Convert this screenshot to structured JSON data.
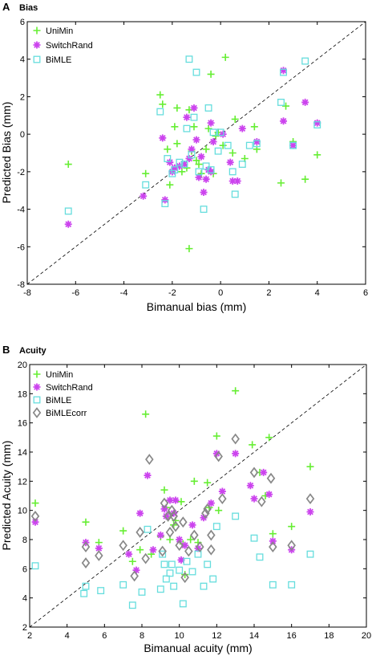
{
  "colors": {
    "UniMin": "#66ee33",
    "SwitchRand": "#cc44ee",
    "BiMLE": "#66dddd",
    "BiMLEcorr": "#888888",
    "axis": "#000000"
  },
  "chart_data": [
    {
      "type": "scatter",
      "panel_letter": "A",
      "title": "Bias",
      "xlabel": "Bimanual bias (mm)",
      "ylabel": "Predicted Bias (mm)",
      "xlim": [
        -8,
        6
      ],
      "ylim": [
        -8,
        6
      ],
      "xticks": [
        -8,
        -6,
        -4,
        -2,
        0,
        2,
        4,
        6
      ],
      "yticks": [
        -8,
        -6,
        -4,
        -2,
        0,
        2,
        4,
        6
      ],
      "identity_line": true,
      "legend_position": "top-left",
      "series": [
        {
          "name": "UniMin",
          "marker": "plus",
          "points": [
            [
              -6.3,
              -1.6
            ],
            [
              -3.1,
              -2.1
            ],
            [
              -2.5,
              2.1
            ],
            [
              -2.4,
              1.6
            ],
            [
              -2.2,
              -0.8
            ],
            [
              -2.1,
              -2.7
            ],
            [
              -1.9,
              0.4
            ],
            [
              -1.8,
              1.4
            ],
            [
              -1.8,
              -0.5
            ],
            [
              -1.6,
              -2.0
            ],
            [
              -1.4,
              -1.8
            ],
            [
              -1.3,
              1.3
            ],
            [
              -1.2,
              -0.9
            ],
            [
              -1.1,
              0.4
            ],
            [
              -1.0,
              -1.4
            ],
            [
              -0.9,
              -1.6
            ],
            [
              -0.8,
              -2.1
            ],
            [
              -0.6,
              -0.8
            ],
            [
              -0.5,
              0.3
            ],
            [
              -0.4,
              3.2
            ],
            [
              -0.3,
              -2.1
            ],
            [
              -0.2,
              -0.1
            ],
            [
              -0.1,
              0.1
            ],
            [
              0.1,
              -0.6
            ],
            [
              0.2,
              4.1
            ],
            [
              0.5,
              -1.0
            ],
            [
              0.6,
              0.8
            ],
            [
              1.0,
              -1.3
            ],
            [
              1.4,
              0.4
            ],
            [
              1.5,
              -0.8
            ],
            [
              -1.3,
              -6.1
            ],
            [
              2.5,
              -2.6
            ],
            [
              2.7,
              1.5
            ],
            [
              3.0,
              -0.4
            ],
            [
              3.5,
              -2.4
            ],
            [
              4.0,
              -1.1
            ]
          ]
        },
        {
          "name": "SwitchRand",
          "marker": "star",
          "points": [
            [
              -6.3,
              -4.8
            ],
            [
              -3.2,
              -3.3
            ],
            [
              -2.4,
              -0.2
            ],
            [
              -2.3,
              -3.5
            ],
            [
              -2.1,
              -1.5
            ],
            [
              -2.0,
              -2.0
            ],
            [
              -1.9,
              -1.8
            ],
            [
              -1.7,
              -1.7
            ],
            [
              -1.5,
              -1.6
            ],
            [
              -1.4,
              0.9
            ],
            [
              -1.3,
              -1.3
            ],
            [
              -1.2,
              -0.8
            ],
            [
              -1.1,
              1.4
            ],
            [
              -1.0,
              -0.3
            ],
            [
              -0.9,
              -2.3
            ],
            [
              -0.8,
              -1.2
            ],
            [
              -0.7,
              -3.1
            ],
            [
              -0.6,
              -2.4
            ],
            [
              -0.5,
              -1.9
            ],
            [
              -0.4,
              -2.0
            ],
            [
              -0.4,
              0.6
            ],
            [
              -0.3,
              -0.4
            ],
            [
              0.1,
              0.0
            ],
            [
              0.4,
              -1.5
            ],
            [
              0.5,
              -2.5
            ],
            [
              0.7,
              -2.5
            ],
            [
              0.9,
              0.3
            ],
            [
              1.5,
              -0.4
            ],
            [
              2.6,
              0.7
            ],
            [
              2.6,
              3.4
            ],
            [
              3.0,
              -0.6
            ],
            [
              3.5,
              1.7
            ],
            [
              4.0,
              0.6
            ]
          ]
        },
        {
          "name": "BiMLE",
          "marker": "square",
          "points": [
            [
              -6.3,
              -4.1
            ],
            [
              -3.1,
              -2.7
            ],
            [
              -2.5,
              1.2
            ],
            [
              -2.3,
              -3.7
            ],
            [
              -2.2,
              -1.3
            ],
            [
              -2.0,
              -2.1
            ],
            [
              -1.9,
              -1.9
            ],
            [
              -1.7,
              -1.5
            ],
            [
              -1.5,
              -1.6
            ],
            [
              -1.4,
              0.3
            ],
            [
              -1.3,
              4.0
            ],
            [
              -1.2,
              -1.1
            ],
            [
              -1.1,
              0.9
            ],
            [
              -1.0,
              3.3
            ],
            [
              -0.9,
              -2.0
            ],
            [
              -0.7,
              -4.0
            ],
            [
              -0.6,
              -1.7
            ],
            [
              -0.5,
              1.4
            ],
            [
              -0.4,
              -1.9
            ],
            [
              -0.3,
              0.1
            ],
            [
              -0.1,
              -0.9
            ],
            [
              0.0,
              0.1
            ],
            [
              0.3,
              -0.6
            ],
            [
              0.5,
              -2.0
            ],
            [
              0.6,
              -3.2
            ],
            [
              0.9,
              -1.6
            ],
            [
              1.2,
              -0.6
            ],
            [
              1.5,
              -0.5
            ],
            [
              2.5,
              1.7
            ],
            [
              2.6,
              3.3
            ],
            [
              3.0,
              -0.6
            ],
            [
              3.5,
              3.9
            ],
            [
              4.0,
              0.5
            ]
          ]
        }
      ]
    },
    {
      "type": "scatter",
      "panel_letter": "B",
      "title": "Acuity",
      "xlabel": "Bimanual acuity (mm)",
      "ylabel": "Predicted Acuity (mm)",
      "xlim": [
        2,
        20
      ],
      "ylim": [
        2,
        20
      ],
      "xticks": [
        2,
        4,
        6,
        8,
        10,
        12,
        14,
        16,
        18,
        20
      ],
      "yticks": [
        2,
        4,
        6,
        8,
        10,
        12,
        14,
        16,
        18,
        20
      ],
      "identity_line": true,
      "legend_position": "top-left",
      "series": [
        {
          "name": "UniMin",
          "marker": "plus",
          "points": [
            [
              2.3,
              10.5
            ],
            [
              5.0,
              9.2
            ],
            [
              5.7,
              7.8
            ],
            [
              7.0,
              8.6
            ],
            [
              7.5,
              6.5
            ],
            [
              7.9,
              7.3
            ],
            [
              8.2,
              16.6
            ],
            [
              8.5,
              7.0
            ],
            [
              9.0,
              8.2
            ],
            [
              9.2,
              11.4
            ],
            [
              9.3,
              10.2
            ],
            [
              9.4,
              9.5
            ],
            [
              9.5,
              8.0
            ],
            [
              9.7,
              9.0
            ],
            [
              9.8,
              9.3
            ],
            [
              10.1,
              10.6
            ],
            [
              10.2,
              7.7
            ],
            [
              10.3,
              5.6
            ],
            [
              10.6,
              8.0
            ],
            [
              10.8,
              12.0
            ],
            [
              11.0,
              7.8
            ],
            [
              11.5,
              11.9
            ],
            [
              11.6,
              10.2
            ],
            [
              12.0,
              15.1
            ],
            [
              12.1,
              10.0
            ],
            [
              13.0,
              18.2
            ],
            [
              13.9,
              14.5
            ],
            [
              14.3,
              12.6
            ],
            [
              14.6,
              11.0
            ],
            [
              14.8,
              15.0
            ],
            [
              15.0,
              8.4
            ],
            [
              16.0,
              8.9
            ],
            [
              17.0,
              13.0
            ]
          ]
        },
        {
          "name": "SwitchRand",
          "marker": "star",
          "points": [
            [
              2.3,
              9.2
            ],
            [
              5.0,
              7.8
            ],
            [
              5.7,
              7.4
            ],
            [
              7.3,
              7.0
            ],
            [
              7.7,
              5.9
            ],
            [
              7.9,
              9.8
            ],
            [
              8.3,
              12.4
            ],
            [
              8.6,
              7.3
            ],
            [
              9.0,
              8.3
            ],
            [
              9.2,
              10.1
            ],
            [
              9.3,
              9.6
            ],
            [
              9.5,
              10.7
            ],
            [
              9.7,
              9.8
            ],
            [
              9.8,
              10.7
            ],
            [
              10.0,
              8.0
            ],
            [
              10.1,
              6.6
            ],
            [
              10.3,
              7.6
            ],
            [
              10.7,
              9.0
            ],
            [
              11.0,
              7.4
            ],
            [
              11.3,
              9.5
            ],
            [
              11.7,
              10.5
            ],
            [
              12.0,
              13.9
            ],
            [
              12.3,
              11.3
            ],
            [
              13.0,
              13.9
            ],
            [
              13.8,
              11.7
            ],
            [
              14.0,
              10.8
            ],
            [
              14.5,
              12.6
            ],
            [
              14.8,
              11.1
            ],
            [
              15.0,
              7.9
            ],
            [
              16.0,
              7.3
            ],
            [
              17.0,
              9.9
            ]
          ]
        },
        {
          "name": "BiMLE",
          "marker": "square",
          "points": [
            [
              2.3,
              6.2
            ],
            [
              4.9,
              4.3
            ],
            [
              5.0,
              4.8
            ],
            [
              5.8,
              4.5
            ],
            [
              7.0,
              4.9
            ],
            [
              7.5,
              3.5
            ],
            [
              8.0,
              4.4
            ],
            [
              8.3,
              8.7
            ],
            [
              9.0,
              4.6
            ],
            [
              9.1,
              7.0
            ],
            [
              9.2,
              6.3
            ],
            [
              9.3,
              5.3
            ],
            [
              9.5,
              5.7
            ],
            [
              9.6,
              6.3
            ],
            [
              9.7,
              4.8
            ],
            [
              10.0,
              5.9
            ],
            [
              10.2,
              3.6
            ],
            [
              10.4,
              6.5
            ],
            [
              10.7,
              5.8
            ],
            [
              11.0,
              7.0
            ],
            [
              11.3,
              4.8
            ],
            [
              11.5,
              6.3
            ],
            [
              11.8,
              5.3
            ],
            [
              12.0,
              8.9
            ],
            [
              13.0,
              9.6
            ],
            [
              14.0,
              8.1
            ],
            [
              14.3,
              6.8
            ],
            [
              15.0,
              4.9
            ],
            [
              16.0,
              4.9
            ],
            [
              17.0,
              7.0
            ]
          ]
        },
        {
          "name": "BiMLEcorr",
          "marker": "diamond",
          "points": [
            [
              2.3,
              9.6
            ],
            [
              5.0,
              6.4
            ],
            [
              5.0,
              7.5
            ],
            [
              5.7,
              6.9
            ],
            [
              7.0,
              7.6
            ],
            [
              7.6,
              5.5
            ],
            [
              7.9,
              8.5
            ],
            [
              8.2,
              6.7
            ],
            [
              8.4,
              13.5
            ],
            [
              9.1,
              7.2
            ],
            [
              9.2,
              10.5
            ],
            [
              9.4,
              9.6
            ],
            [
              9.5,
              8.5
            ],
            [
              9.6,
              10.0
            ],
            [
              9.7,
              9.6
            ],
            [
              9.8,
              8.9
            ],
            [
              10.0,
              7.6
            ],
            [
              10.2,
              9.2
            ],
            [
              10.3,
              5.4
            ],
            [
              10.5,
              7.2
            ],
            [
              10.8,
              8.3
            ],
            [
              11.1,
              7.5
            ],
            [
              11.4,
              9.8
            ],
            [
              11.5,
              10.1
            ],
            [
              11.7,
              8.3
            ],
            [
              11.7,
              7.3
            ],
            [
              12.1,
              13.7
            ],
            [
              12.3,
              10.8
            ],
            [
              13.0,
              14.9
            ],
            [
              14.0,
              12.6
            ],
            [
              14.4,
              10.6
            ],
            [
              14.9,
              12.2
            ],
            [
              15.0,
              7.5
            ],
            [
              16.0,
              7.6
            ],
            [
              17.0,
              10.8
            ]
          ]
        }
      ]
    }
  ]
}
